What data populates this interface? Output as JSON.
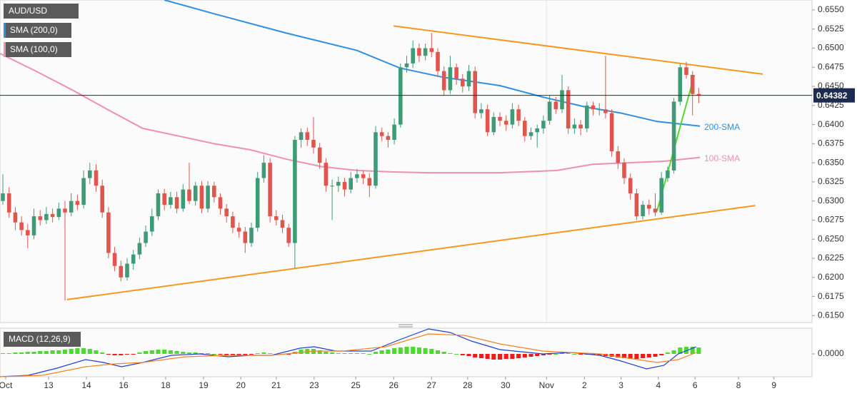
{
  "chart_data": {
    "type": "candlestick",
    "title": "AUD/USD",
    "up_color": "#3f9a76",
    "down_color": "#e0554e",
    "xlim": [
      -0.46,
      130.23
    ],
    "xticks": [
      {
        "value": 0.46,
        "label": "Oct"
      },
      {
        "value": 7.36,
        "label": "13"
      },
      {
        "value": 13.45,
        "label": "14"
      },
      {
        "value": 19.43,
        "label": "16"
      },
      {
        "value": 26.2,
        "label": "18"
      },
      {
        "value": 32.3,
        "label": "19"
      },
      {
        "value": 38.3,
        "label": "20"
      },
      {
        "value": 44.0,
        "label": "21"
      },
      {
        "value": 50.1,
        "label": "23"
      },
      {
        "value": 56.8,
        "label": "25"
      },
      {
        "value": 62.9,
        "label": "26"
      },
      {
        "value": 69.0,
        "label": "27"
      },
      {
        "value": 74.8,
        "label": "28"
      },
      {
        "value": 80.9,
        "label": "30"
      },
      {
        "value": 87.5,
        "label": "Nov"
      },
      {
        "value": 93.6,
        "label": "2"
      },
      {
        "value": 99.5,
        "label": "3"
      },
      {
        "value": 105.5,
        "label": "4"
      },
      {
        "value": 111.4,
        "label": "6"
      },
      {
        "value": 118.4,
        "label": "8"
      },
      {
        "value": 124.1,
        "label": "9"
      }
    ],
    "ylim": [
      0.6141,
      0.6563
    ],
    "yticks": [
      {
        "value": 0.615,
        "label": "0.6150"
      },
      {
        "value": 0.6175,
        "label": "0.6175"
      },
      {
        "value": 0.62,
        "label": "0.6200"
      },
      {
        "value": 0.6225,
        "label": "0.6225"
      },
      {
        "value": 0.625,
        "label": "0.6250"
      },
      {
        "value": 0.6275,
        "label": "0.6275"
      },
      {
        "value": 0.63,
        "label": "0.6300"
      },
      {
        "value": 0.6325,
        "label": "0.6325"
      },
      {
        "value": 0.635,
        "label": "0.6350"
      },
      {
        "value": 0.6375,
        "label": "0.6375"
      },
      {
        "value": 0.64,
        "label": "0.6400"
      },
      {
        "value": 0.6425,
        "label": "0.6425"
      },
      {
        "value": 0.645,
        "label": "0.6450"
      },
      {
        "value": 0.6475,
        "label": "0.6475"
      },
      {
        "value": 0.65,
        "label": "0.6500"
      },
      {
        "value": 0.6525,
        "label": "0.6525"
      },
      {
        "value": 0.655,
        "label": "0.6550"
      }
    ],
    "last_price": {
      "value": 0.64382,
      "label": "0.64382"
    },
    "candles": [
      [
        0.63,
        0.6335,
        0.6295,
        0.631
      ],
      [
        0.631,
        0.6318,
        0.6278,
        0.6285
      ],
      [
        0.6285,
        0.6292,
        0.6262,
        0.6272
      ],
      [
        0.6272,
        0.628,
        0.6255,
        0.6262
      ],
      [
        0.6262,
        0.627,
        0.6238,
        0.6255
      ],
      [
        0.6255,
        0.629,
        0.625,
        0.628
      ],
      [
        0.628,
        0.6288,
        0.6268,
        0.6275
      ],
      [
        0.6275,
        0.6292,
        0.627,
        0.6283
      ],
      [
        0.6283,
        0.629,
        0.6272,
        0.6279
      ],
      [
        0.6279,
        0.6298,
        0.6275,
        0.629
      ],
      [
        0.629,
        0.63,
        0.617,
        0.6285
      ],
      [
        0.6285,
        0.631,
        0.628,
        0.63
      ],
      [
        0.63,
        0.6308,
        0.6288,
        0.6295
      ],
      [
        0.6295,
        0.634,
        0.629,
        0.633
      ],
      [
        0.633,
        0.635,
        0.6322,
        0.634
      ],
      [
        0.634,
        0.6348,
        0.6312,
        0.632
      ],
      [
        0.632,
        0.6328,
        0.6278,
        0.6285
      ],
      [
        0.6285,
        0.6292,
        0.6225,
        0.6232
      ],
      [
        0.6232,
        0.624,
        0.6208,
        0.6215
      ],
      [
        0.6215,
        0.6222,
        0.6195,
        0.62
      ],
      [
        0.62,
        0.6225,
        0.6196,
        0.6218
      ],
      [
        0.6218,
        0.6236,
        0.621,
        0.623
      ],
      [
        0.623,
        0.6252,
        0.6224,
        0.6245
      ],
      [
        0.6245,
        0.6268,
        0.624,
        0.626
      ],
      [
        0.626,
        0.629,
        0.6254,
        0.628
      ],
      [
        0.628,
        0.6315,
        0.6275,
        0.631
      ],
      [
        0.631,
        0.6316,
        0.6288,
        0.6295
      ],
      [
        0.6295,
        0.6312,
        0.629,
        0.6305
      ],
      [
        0.6305,
        0.6312,
        0.6284,
        0.629
      ],
      [
        0.629,
        0.6322,
        0.6286,
        0.6315
      ],
      [
        0.6315,
        0.635,
        0.6296,
        0.63
      ],
      [
        0.63,
        0.6325,
        0.6294,
        0.632
      ],
      [
        0.632,
        0.6326,
        0.6284,
        0.629
      ],
      [
        0.629,
        0.6326,
        0.6285,
        0.632
      ],
      [
        0.632,
        0.6325,
        0.6298,
        0.6305
      ],
      [
        0.6305,
        0.631,
        0.6282,
        0.629
      ],
      [
        0.629,
        0.6296,
        0.6272,
        0.628
      ],
      [
        0.628,
        0.6286,
        0.6258,
        0.6265
      ],
      [
        0.6265,
        0.6272,
        0.6252,
        0.626
      ],
      [
        0.626,
        0.6266,
        0.6232,
        0.6245
      ],
      [
        0.6245,
        0.6272,
        0.624,
        0.6265
      ],
      [
        0.6265,
        0.6338,
        0.626,
        0.633
      ],
      [
        0.633,
        0.636,
        0.6324,
        0.635
      ],
      [
        0.635,
        0.6356,
        0.6272,
        0.628
      ],
      [
        0.628,
        0.6288,
        0.6268,
        0.6275
      ],
      [
        0.6275,
        0.6282,
        0.6258,
        0.6265
      ],
      [
        0.6265,
        0.627,
        0.624,
        0.6245
      ],
      [
        0.6245,
        0.6385,
        0.6212,
        0.638
      ],
      [
        0.638,
        0.6395,
        0.637,
        0.639
      ],
      [
        0.639,
        0.6396,
        0.6372,
        0.638
      ],
      [
        0.638,
        0.641,
        0.6362,
        0.637
      ],
      [
        0.637,
        0.6376,
        0.6342,
        0.635
      ],
      [
        0.635,
        0.6356,
        0.6312,
        0.632
      ],
      [
        0.632,
        0.6328,
        0.6275,
        0.632
      ],
      [
        0.632,
        0.6332,
        0.6312,
        0.6325
      ],
      [
        0.6325,
        0.633,
        0.6306,
        0.6315
      ],
      [
        0.6315,
        0.6338,
        0.631,
        0.633
      ],
      [
        0.633,
        0.6342,
        0.6324,
        0.6335
      ],
      [
        0.6335,
        0.634,
        0.6322,
        0.633
      ],
      [
        0.633,
        0.6336,
        0.6305,
        0.632
      ],
      [
        0.632,
        0.6398,
        0.6316,
        0.639
      ],
      [
        0.639,
        0.6396,
        0.6378,
        0.6385
      ],
      [
        0.6385,
        0.639,
        0.637,
        0.638
      ],
      [
        0.638,
        0.6408,
        0.6374,
        0.64
      ],
      [
        0.64,
        0.648,
        0.6396,
        0.6475
      ],
      [
        0.6475,
        0.649,
        0.6468,
        0.648
      ],
      [
        0.648,
        0.651,
        0.6474,
        0.65
      ],
      [
        0.65,
        0.6506,
        0.6482,
        0.649
      ],
      [
        0.649,
        0.6506,
        0.6484,
        0.65
      ],
      [
        0.65,
        0.652,
        0.6488,
        0.6495
      ],
      [
        0.6495,
        0.65,
        0.6462,
        0.647
      ],
      [
        0.647,
        0.6476,
        0.6438,
        0.6445
      ],
      [
        0.6445,
        0.649,
        0.644,
        0.6475
      ],
      [
        0.6475,
        0.648,
        0.6452,
        0.646
      ],
      [
        0.646,
        0.6466,
        0.6442,
        0.645
      ],
      [
        0.645,
        0.6478,
        0.6444,
        0.647
      ],
      [
        0.647,
        0.6476,
        0.6408,
        0.6415
      ],
      [
        0.6415,
        0.6428,
        0.6408,
        0.642
      ],
      [
        0.642,
        0.6426,
        0.6385,
        0.639
      ],
      [
        0.639,
        0.6416,
        0.6386,
        0.641
      ],
      [
        0.641,
        0.6416,
        0.6398,
        0.6405
      ],
      [
        0.6405,
        0.6412,
        0.6392,
        0.64
      ],
      [
        0.64,
        0.6428,
        0.6395,
        0.642
      ],
      [
        0.642,
        0.6426,
        0.6398,
        0.6405
      ],
      [
        0.6405,
        0.641,
        0.6378,
        0.6385
      ],
      [
        0.6385,
        0.6396,
        0.638,
        0.639
      ],
      [
        0.639,
        0.64,
        0.637,
        0.6395
      ],
      [
        0.6395,
        0.6412,
        0.6388,
        0.6405
      ],
      [
        0.6405,
        0.6438,
        0.64,
        0.643
      ],
      [
        0.643,
        0.6436,
        0.6414,
        0.642
      ],
      [
        0.642,
        0.6465,
        0.6415,
        0.6445
      ],
      [
        0.6445,
        0.645,
        0.6388,
        0.6395
      ],
      [
        0.6395,
        0.6408,
        0.6388,
        0.64
      ],
      [
        0.64,
        0.6406,
        0.6386,
        0.6395
      ],
      [
        0.6395,
        0.643,
        0.639,
        0.6425
      ],
      [
        0.6425,
        0.643,
        0.6412,
        0.642
      ],
      [
        0.642,
        0.6428,
        0.6412,
        0.642
      ],
      [
        0.642,
        0.649,
        0.6408,
        0.6415
      ],
      [
        0.6415,
        0.642,
        0.6358,
        0.6365
      ],
      [
        0.6365,
        0.6372,
        0.6342,
        0.635
      ],
      [
        0.635,
        0.6356,
        0.6322,
        0.633
      ],
      [
        0.633,
        0.6336,
        0.6302,
        0.631
      ],
      [
        0.631,
        0.6316,
        0.6275,
        0.628
      ],
      [
        0.628,
        0.63,
        0.6276,
        0.6295
      ],
      [
        0.6295,
        0.6302,
        0.6282,
        0.629
      ],
      [
        0.629,
        0.631,
        0.628,
        0.6285
      ],
      [
        0.6285,
        0.6338,
        0.6282,
        0.633
      ],
      [
        0.633,
        0.6345,
        0.6325,
        0.634
      ],
      [
        0.634,
        0.6435,
        0.6336,
        0.643
      ],
      [
        0.643,
        0.648,
        0.6425,
        0.6475
      ],
      [
        0.6475,
        0.6482,
        0.646,
        0.6465
      ],
      [
        0.6465,
        0.647,
        0.6412,
        0.644
      ],
      [
        0.644,
        0.6448,
        0.6428,
        0.6438
      ]
    ],
    "lines": [
      {
        "name": "200-SMA",
        "legend_label": "SMA (200,0)",
        "color": "#2f8fe0",
        "x": [
          26.0,
          34.0,
          45.5,
          57.0,
          63.9,
          70.8,
          80.0,
          86.9,
          93.8,
          99.5,
          105.3,
          112.2
        ],
        "values": [
          0.6563,
          0.6545,
          0.652,
          0.6497,
          0.6474,
          0.6462,
          0.6451,
          0.6436,
          0.6423,
          0.6415,
          0.6404,
          0.6398
        ]
      },
      {
        "name": "100-SMA",
        "legend_label": "SMA (100,0)",
        "color": "#f08fb0",
        "x": [
          -0.46,
          5.3,
          11.0,
          16.8,
          22.5,
          28.3,
          34.0,
          39.8,
          45.5,
          51.3,
          57.0,
          62.8,
          68.5,
          80.0,
          89.2,
          94.9,
          100.7,
          106.4,
          112.2
        ],
        "values": [
          0.6493,
          0.647,
          0.6446,
          0.642,
          0.6395,
          0.6385,
          0.6375,
          0.6367,
          0.6355,
          0.6345,
          0.634,
          0.6338,
          0.6337,
          0.6337,
          0.634,
          0.6348,
          0.635,
          0.6352,
          0.6357
        ]
      }
    ],
    "trendlines": [
      {
        "color": "#f7981d",
        "x": [
          62.9,
          122.3
        ],
        "values": [
          0.6529,
          0.6466
        ]
      },
      {
        "color": "#f7981d",
        "x": [
          10.3,
          121.1
        ],
        "values": [
          0.6171,
          0.6294
        ]
      },
      {
        "color": "#55d82a",
        "x": [
          105.3,
          111.3
        ],
        "values": [
          0.6287,
          0.6465
        ]
      }
    ],
    "macd": {
      "title": "MACD (12,26,9)",
      "y2lim": [
        -0.0032,
        0.0036
      ],
      "y2ticks": [
        {
          "value": 0,
          "label": "0.0000"
        }
      ],
      "up_color": "#4cd930",
      "down_color": "#f01a1a",
      "histogram": [
        0.0001,
        0.0001,
        0.0002,
        0.0002,
        0.0003,
        0.0003,
        0.0004,
        0.0004,
        0.0005,
        0.0005,
        0.0006,
        0.0007,
        0.0008,
        0.0008,
        0.0007,
        0.0005,
        0.0002,
        -0.0001,
        -0.0002,
        -0.0002,
        -0.0001,
        -0.0001,
        0.0002,
        0.0004,
        0.0005,
        0.0006,
        0.0006,
        0.0005,
        0.0004,
        0.0003,
        0.0002,
        0.0002,
        0.0001,
        0.0001,
        0,
        -0.0001,
        -0.0002,
        -0.0002,
        -0.0003,
        -0.0002,
        -0.0001,
        0.0001,
        0.0002,
        0.0001,
        0,
        -0.0001,
        -0.0001,
        0.0003,
        0.0006,
        0.0007,
        0.0007,
        0.0005,
        0.0003,
        0.0002,
        0.0001,
        0.0001,
        0.0001,
        0.0001,
        0.0001,
        0,
        0.0003,
        0.0005,
        0.0006,
        0.0008,
        0.0009,
        0.001,
        0.001,
        0.0009,
        0.0008,
        0.0007,
        0.0005,
        0.0003,
        0.0001,
        0,
        -0.0002,
        -0.0003,
        -0.0005,
        -0.0006,
        -0.0007,
        -0.0008,
        -0.0008,
        -0.0007,
        -0.0007,
        -0.0006,
        -0.0005,
        -0.0004,
        -0.0003,
        -0.0002,
        -0.0001,
        0,
        0.0001,
        0.0001,
        0,
        -0.0001,
        -0.0001,
        -0.0001,
        -0.0002,
        -0.0003,
        -0.0004,
        -0.0005,
        -0.0006,
        -0.0007,
        -0.0007,
        -0.0006,
        -0.0005,
        -0.0004,
        -0.0002,
        0.0002,
        0.0005,
        0.0009,
        0.001,
        0.001,
        0.0009
      ],
      "series": [
        {
          "name": "MACD",
          "color": "#1f3fd6",
          "x": [
            -0.5,
            4.1,
            8.7,
            13.3,
            16.2,
            19.1,
            22.5,
            27.1,
            31.7,
            36.3,
            39.8,
            43.2,
            47.8,
            50.1,
            53.6,
            59.3,
            63.9,
            68.5,
            72.0,
            75.4,
            80.0,
            86.9,
            91.5,
            96.1,
            99.5,
            103.6,
            106.4,
            108.7,
            111.6
          ],
          "values": [
            -0.0032,
            -0.003,
            -0.002,
            -0.0008,
            -0.0012,
            -0.0018,
            -0.0012,
            -0.0002,
            0,
            -0.0004,
            -0.0002,
            -0.0002,
            0.0008,
            0.001,
            0.0004,
            0.0004,
            0.002,
            0.0035,
            0.003,
            0.0018,
            0.0006,
            0,
            0.0002,
            -0.0002,
            -0.001,
            -0.0021,
            -0.0016,
            0,
            0.001
          ]
        },
        {
          "name": "Signal",
          "color": "#f5821f",
          "x": [
            -0.5,
            6.4,
            13.3,
            17.9,
            22.5,
            29.4,
            36.3,
            43.2,
            50.1,
            54.7,
            61.6,
            68.5,
            74.3,
            80.0,
            86.9,
            96.1,
            100.7,
            105.3,
            108.7,
            111.6
          ],
          "values": [
            -0.0032,
            -0.003,
            -0.0018,
            -0.0014,
            -0.0012,
            -0.0004,
            -0.0002,
            -0.0002,
            0.0004,
            0.0004,
            0.001,
            0.0028,
            0.0026,
            0.0014,
            0.0004,
            0,
            -0.0006,
            -0.0012,
            -0.0008,
            0.0002
          ]
        }
      ]
    }
  }
}
